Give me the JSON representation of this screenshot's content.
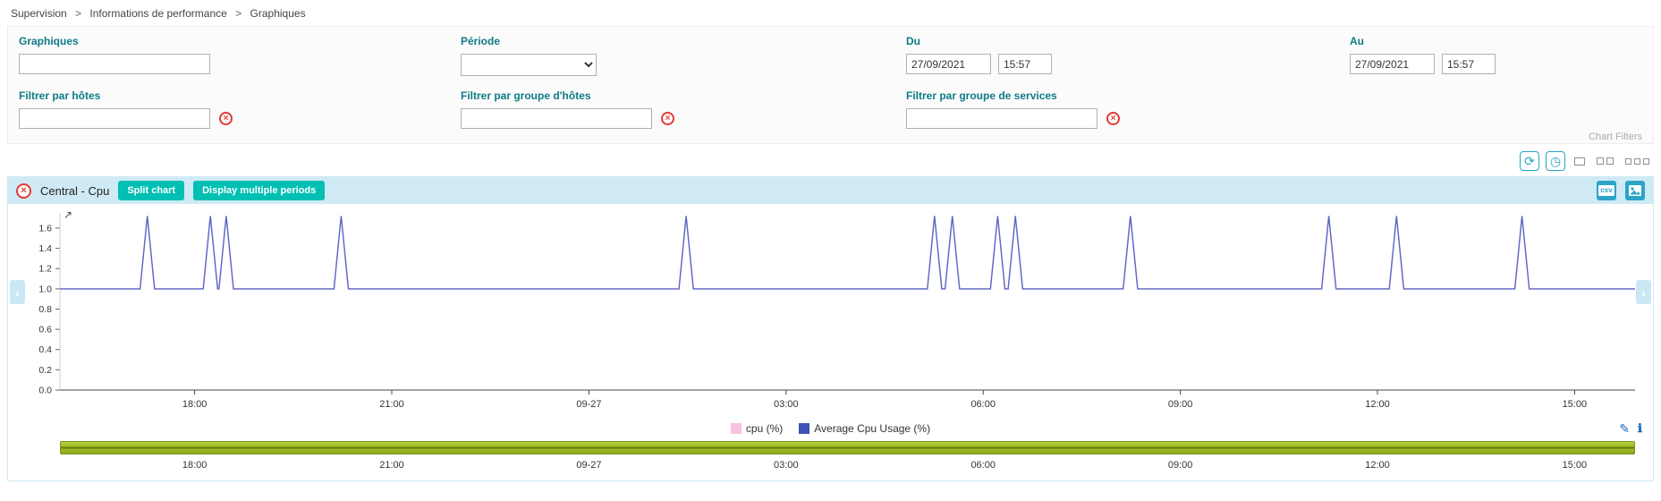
{
  "breadcrumb": {
    "separator": ">",
    "items": [
      "Supervision",
      "Informations de performance",
      "Graphiques"
    ]
  },
  "filters": {
    "caption": "Chart Filters",
    "graphs_label": "Graphiques",
    "graphs_value": "",
    "period_label": "Période",
    "period_value": "",
    "from_label": "Du",
    "from_date": "27/09/2021",
    "from_time": "15:57",
    "to_label": "Au",
    "to_date": "27/09/2021",
    "to_time": "15:57",
    "hosts_label": "Filtrer par hôtes",
    "hosts_value": "",
    "hostgroups_label": "Filtrer par groupe d'hôtes",
    "hostgroups_value": "",
    "servicegroups_label": "Filtrer par groupe de services",
    "servicegroups_value": ""
  },
  "chart_header": {
    "title": "Central - Cpu",
    "split_button": "Split chart",
    "periods_button": "Display multiple periods",
    "csv_label": "csv"
  },
  "icons": {
    "clear": "×",
    "close": "×",
    "refresh": "⟳",
    "clock": "◷",
    "brush": "✎",
    "info": "ℹ",
    "chevron_left": "‹",
    "chevron_right": "›",
    "zoom": "↗"
  },
  "colors": {
    "accent_teal": "#00bfb3",
    "header_bg": "#cfeaf5",
    "label_teal": "#0d7b85",
    "line_blue": "#5a68c5",
    "legend_pink": "#f7c3dc",
    "legend_blue": "#3f51b5",
    "timeline_green": "#9cba28",
    "clear_red": "#e53935"
  },
  "chart_data": {
    "type": "line",
    "title": "Central - Cpu",
    "xlabel": "",
    "ylabel": "",
    "ylim": [
      0,
      1.75
    ],
    "yticks": [
      0,
      0.2,
      0.4,
      0.6,
      0.8,
      1.0,
      1.2,
      1.4,
      1.6
    ],
    "x_axis_note": "hours relative to 2021-09-27 00:00",
    "xlim": [
      -8.05,
      15.92
    ],
    "xticks": [
      {
        "h": -6,
        "label": "18:00"
      },
      {
        "h": -3,
        "label": "21:00"
      },
      {
        "h": 0,
        "label": "09-27"
      },
      {
        "h": 3,
        "label": "03:00"
      },
      {
        "h": 6,
        "label": "06:00"
      },
      {
        "h": 9,
        "label": "09:00"
      },
      {
        "h": 12,
        "label": "12:00"
      },
      {
        "h": 15,
        "label": "15:00"
      }
    ],
    "grid": false,
    "legend_position": "bottom-center",
    "spike_half_width_hours": 0.11,
    "series": [
      {
        "name": "cpu (%)",
        "color": "#f7c3dc",
        "baseline": 1.0,
        "peak": 1.72,
        "spike_hours": [
          -6.72,
          -5.76,
          -5.52,
          -3.77,
          1.48,
          5.26,
          5.53,
          6.22,
          6.49,
          8.24,
          11.26,
          12.29,
          14.2
        ]
      },
      {
        "name": "Average Cpu Usage (%)",
        "color": "#5a68c5",
        "baseline": 1.0,
        "peak": 1.72,
        "spike_hours": [
          -6.72,
          -5.76,
          -5.52,
          -3.77,
          1.48,
          5.26,
          5.53,
          6.22,
          6.49,
          8.24,
          11.26,
          12.29,
          14.2
        ]
      }
    ],
    "legend": [
      {
        "label": "cpu (%)",
        "color": "#f7c3dc"
      },
      {
        "label": "Average Cpu Usage (%)",
        "color": "#3f51b5"
      }
    ],
    "timeline_bar": {
      "color": "#9cba28"
    }
  }
}
